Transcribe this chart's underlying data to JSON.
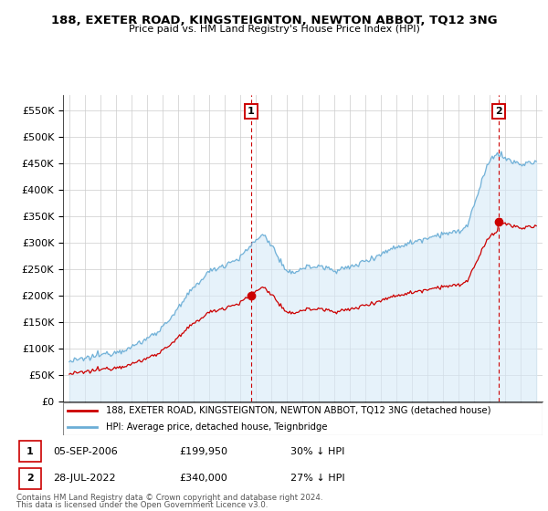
{
  "title": "188, EXETER ROAD, KINGSTEIGNTON, NEWTON ABBOT, TQ12 3NG",
  "subtitle": "Price paid vs. HM Land Registry's House Price Index (HPI)",
  "legend_line1": "188, EXETER ROAD, KINGSTEIGNTON, NEWTON ABBOT, TQ12 3NG (detached house)",
  "legend_line2": "HPI: Average price, detached house, Teignbridge",
  "annotation1_date": "05-SEP-2006",
  "annotation1_price": "£199,950",
  "annotation1_pct": "30% ↓ HPI",
  "annotation2_date": "28-JUL-2022",
  "annotation2_price": "£340,000",
  "annotation2_pct": "27% ↓ HPI",
  "footer1": "Contains HM Land Registry data © Crown copyright and database right 2024.",
  "footer2": "This data is licensed under the Open Government Licence v3.0.",
  "sale_color": "#cc0000",
  "hpi_color": "#6baed6",
  "hpi_fill_color": "#d6eaf8",
  "annotation_vline_color": "#cc0000",
  "sale_marker_color": "#cc0000",
  "ylim": [
    0,
    580000
  ],
  "yticks": [
    0,
    50000,
    100000,
    150000,
    200000,
    250000,
    300000,
    350000,
    400000,
    450000,
    500000,
    550000
  ],
  "ytick_labels": [
    "£0",
    "£50K",
    "£100K",
    "£150K",
    "£200K",
    "£250K",
    "£300K",
    "£350K",
    "£400K",
    "£450K",
    "£500K",
    "£550K"
  ],
  "sale1_x": 2006.67,
  "sale1_y": 199950,
  "sale2_x": 2022.57,
  "sale2_y": 340000,
  "xlim_left": 1994.6,
  "xlim_right": 2025.4
}
